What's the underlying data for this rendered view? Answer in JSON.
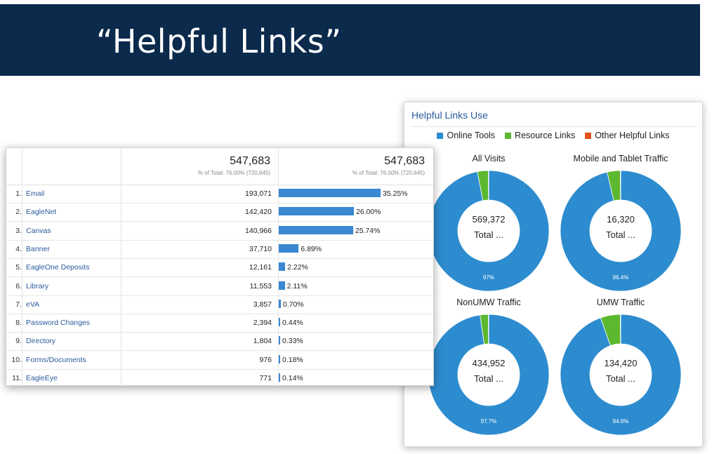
{
  "slide": {
    "title": "“Helpful Links”"
  },
  "colors": {
    "header_bg": "#0b2a4c",
    "online_tools": "#2d8ccf",
    "resource_links": "#5cb82f",
    "other_helpful_links": "#e0541b",
    "bar": "#3a87d2"
  },
  "table": {
    "columns": [
      {
        "total": "547,683",
        "subtitle": "% of Total: 76.00% (720,645)"
      },
      {
        "total": "547,683",
        "subtitle": "% of Total: 76.00% (720,645)"
      }
    ],
    "rows": [
      {
        "num": "1.",
        "name": "Email",
        "value": "193,071",
        "pct_label": "35.25%",
        "pct": 35.25
      },
      {
        "num": "2.",
        "name": "EagleNet",
        "value": "142,420",
        "pct_label": "26.00%",
        "pct": 26.0
      },
      {
        "num": "3.",
        "name": "Canvas",
        "value": "140,966",
        "pct_label": "25.74%",
        "pct": 25.74
      },
      {
        "num": "4.",
        "name": "Banner",
        "value": "37,710",
        "pct_label": "6.89%",
        "pct": 6.89
      },
      {
        "num": "5.",
        "name": "EagleOne Deposits",
        "value": "12,161",
        "pct_label": "2.22%",
        "pct": 2.22
      },
      {
        "num": "6.",
        "name": "Library",
        "value": "11,553",
        "pct_label": "2.11%",
        "pct": 2.11
      },
      {
        "num": "7.",
        "name": "eVA",
        "value": "3,857",
        "pct_label": "0.70%",
        "pct": 0.7
      },
      {
        "num": "8.",
        "name": "Password Changes",
        "value": "2,394",
        "pct_label": "0.44%",
        "pct": 0.44
      },
      {
        "num": "9.",
        "name": "Directory",
        "value": "1,804",
        "pct_label": "0.33%",
        "pct": 0.33
      },
      {
        "num": "10.",
        "name": "Forms/Documents",
        "value": "976",
        "pct_label": "0.18%",
        "pct": 0.18
      },
      {
        "num": "11.",
        "name": "EagleEye",
        "value": "771",
        "pct_label": "0.14%",
        "pct": 0.14
      }
    ]
  },
  "chart_data": [
    {
      "type": "bar",
      "orientation": "horizontal",
      "categories": [
        "Email",
        "EagleNet",
        "Canvas",
        "Banner",
        "EagleOne Deposits",
        "Library",
        "eVA",
        "Password Changes",
        "Directory",
        "Forms/Documents",
        "EagleEye"
      ],
      "values": [
        35.25,
        26.0,
        25.74,
        6.89,
        2.22,
        2.11,
        0.7,
        0.44,
        0.33,
        0.18,
        0.14
      ],
      "counts": [
        193071,
        142420,
        140966,
        37710,
        12161,
        11553,
        3857,
        2394,
        1804,
        976,
        771
      ]
    },
    {
      "type": "pie",
      "title": "Helpful Links Use",
      "legend": [
        "Online Tools",
        "Resource Links",
        "Other Helpful Links"
      ],
      "legend_position": "top",
      "donuts": [
        {
          "title": "All Visits",
          "center_value": "569,372",
          "center_label": "Total ...",
          "pct_label": "97%",
          "values": [
            97.0,
            2.9,
            0.1
          ]
        },
        {
          "title": "Mobile and Tablet Traffic",
          "center_value": "16,320",
          "center_label": "Total ...",
          "pct_label": "96.4%",
          "values": [
            96.4,
            3.5,
            0.1
          ]
        },
        {
          "title": "NonUMW Traffic",
          "center_value": "434,952",
          "center_label": "Total ...",
          "pct_label": "97.7%",
          "values": [
            97.7,
            2.2,
            0.1
          ]
        },
        {
          "title": "UMW Traffic",
          "center_value": "134,420",
          "center_label": "Total ...",
          "pct_label": "94.6%",
          "values": [
            94.6,
            5.3,
            0.1
          ]
        }
      ]
    }
  ]
}
